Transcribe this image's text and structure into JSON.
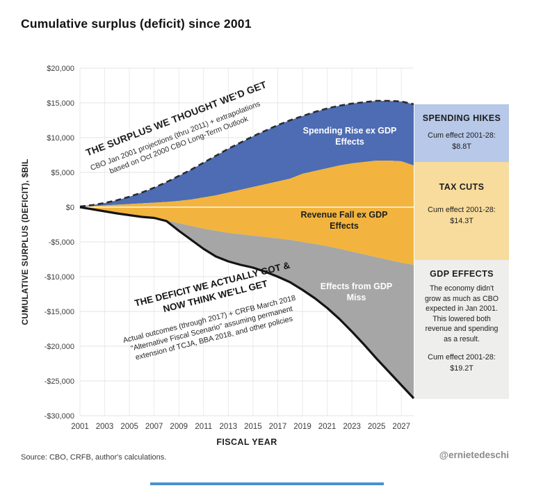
{
  "page": {
    "title": "Cumulative surplus (deficit) since 2001",
    "footer": {
      "source": "Source: CBO, CRFB, author's calculations.",
      "attribution": "@ernietedeschi",
      "divider_color": "#4a90d2"
    }
  },
  "chart": {
    "annotations": {
      "surplus_label": "THE SURPLUS WE THOUGHT WE'D GET",
      "surplus_note": "CBO Jan 2001 projections (thru 2011) + extrapolations based on Oct 2000 CBO Long-Term Outlook",
      "spending_area_label": "Spending Rise ex GDP Effects",
      "revenue_area_label": "Revenue Fall ex GDP Effects",
      "gdp_area_label": "Effects from GDP Miss",
      "deficit_label": "THE DEFICIT WE ACTUALLY GOT & NOW THINK WE'LL GET",
      "deficit_note": "Actual outcomes (through 2017) + CRFB March 2018 \"Alternative Fiscal Scenario\" assuming permanent extension of TCJA, BBA 2018, and other policies"
    }
  },
  "chart_data": {
    "type": "area",
    "title": "Cumulative surplus (deficit) since 2001",
    "xlabel": "FISCAL YEAR",
    "ylabel": "CUMULATIVE SURPLUS (DEFICIT), $BIL",
    "xlim": [
      2001,
      2028
    ],
    "ylim": [
      -30000,
      20000
    ],
    "grid": true,
    "legend": "labels drawn inside plot areas",
    "x_ticks": [
      2001,
      2003,
      2005,
      2007,
      2009,
      2011,
      2013,
      2015,
      2017,
      2019,
      2021,
      2023,
      2025,
      2027
    ],
    "y_ticks": [
      20000,
      15000,
      10000,
      5000,
      0,
      -5000,
      -10000,
      -15000,
      -20000,
      -25000,
      -30000
    ],
    "y_tick_labels": [
      "$20,000",
      "$15,000",
      "$10,000",
      "$5,000",
      "$0",
      "-$5,000",
      "-$10,000",
      "-$15,000",
      "-$20,000",
      "-$25,000",
      "-$30,000"
    ],
    "years": [
      2001,
      2002,
      2003,
      2004,
      2005,
      2006,
      2007,
      2008,
      2009,
      2010,
      2011,
      2012,
      2013,
      2014,
      2015,
      2016,
      2017,
      2018,
      2019,
      2020,
      2021,
      2022,
      2023,
      2024,
      2025,
      2026,
      2027,
      2028
    ],
    "boundaries": {
      "projected": [
        100,
        300,
        600,
        1000,
        1500,
        2100,
        2800,
        3600,
        4500,
        5400,
        6400,
        7400,
        8400,
        9300,
        10200,
        11000,
        11800,
        12500,
        13100,
        13700,
        14200,
        14600,
        14900,
        15100,
        15300,
        15300,
        15200,
        14800
      ],
      "after_spending": [
        50,
        150,
        250,
        350,
        450,
        550,
        650,
        750,
        900,
        1100,
        1400,
        1700,
        2100,
        2500,
        2900,
        3300,
        3700,
        4100,
        4800,
        5200,
        5600,
        6000,
        6300,
        6500,
        6700,
        6700,
        6600,
        6000
      ],
      "after_revenue": [
        0,
        -200,
        -500,
        -800,
        -1100,
        -1350,
        -1500,
        -1900,
        -2300,
        -2700,
        -3100,
        -3400,
        -3700,
        -3900,
        -4100,
        -4300,
        -4500,
        -4700,
        -5000,
        -5300,
        -5600,
        -6000,
        -6400,
        -6800,
        -7200,
        -7600,
        -8000,
        -8300
      ],
      "actual": [
        0,
        -300,
        -600,
        -900,
        -1150,
        -1400,
        -1550,
        -2000,
        -3400,
        -4700,
        -6000,
        -7100,
        -7800,
        -8300,
        -8700,
        -9300,
        -10000,
        -10800,
        -11900,
        -13100,
        -14500,
        -16100,
        -17900,
        -19800,
        -21800,
        -23700,
        -25600,
        -27500
      ]
    },
    "series": [
      {
        "name": "THE SURPLUS WE THOUGHT WE'D GET (projected, dashed line)",
        "type": "line",
        "style": "dashed",
        "uses": "projected"
      },
      {
        "name": "Spending Rise ex GDP Effects",
        "type": "area",
        "upper": "projected",
        "lower": "after_spending",
        "cum_effect_2001_28": "$8.8T"
      },
      {
        "name": "Revenue Fall ex GDP Effects",
        "type": "area",
        "upper": "after_spending",
        "lower": "after_revenue",
        "cum_effect_2001_28": "$14.3T"
      },
      {
        "name": "Effects from GDP Miss",
        "type": "area",
        "upper": "after_revenue",
        "lower": "actual",
        "cum_effect_2001_28": "$19.2T"
      },
      {
        "name": "THE DEFICIT WE ACTUALLY GOT & NOW THINK WE'LL GET (solid line)",
        "type": "line",
        "style": "solid",
        "uses": "actual"
      }
    ],
    "colors": {
      "spending": "#4d6cb3",
      "revenue": "#f2b43e",
      "gdp": "#a6a6a6",
      "projected_line": "#2b2b2b",
      "actual_line": "#141414"
    }
  },
  "sidebar": [
    {
      "title": "SPENDING HIKES",
      "cum_label": "Cum effect 2001-28:",
      "cum_value": "$8.8T",
      "bg": "#b7c8e8"
    },
    {
      "title": "TAX CUTS",
      "cum_label": "Cum effect 2001-28:",
      "cum_value": "$14.3T",
      "bg": "#f8dc9d"
    },
    {
      "title": "GDP EFFECTS",
      "body": "The economy didn't grow as much as CBO expected in Jan 2001. This lowered both revenue and spending as a result.",
      "cum_label": "Cum effect 2001-28:",
      "cum_value": "$19.2T",
      "bg": "#eeeeec"
    }
  ]
}
